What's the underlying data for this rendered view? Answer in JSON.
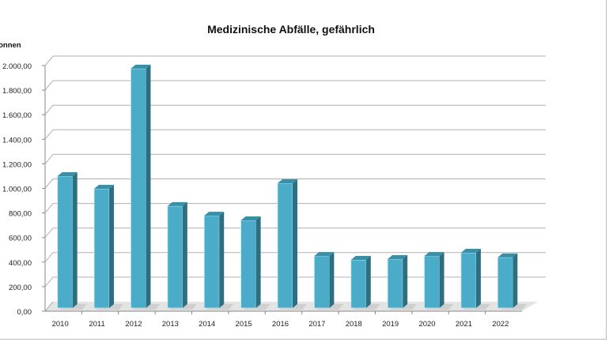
{
  "chart_data": {
    "type": "bar",
    "title": "Medizinische Abfälle, gefährlich",
    "ylabel": "Tonnen",
    "xlabel": "",
    "categories": [
      "2010",
      "2011",
      "2012",
      "2013",
      "2014",
      "2015",
      "2016",
      "2017",
      "2018",
      "2019",
      "2020",
      "2021",
      "2022"
    ],
    "values": [
      1074,
      971,
      1949,
      830,
      752,
      714,
      1016,
      424,
      392,
      399,
      424,
      450,
      412
    ],
    "ylim": [
      0,
      2000
    ],
    "yticks": [
      "0,00",
      "200,00",
      "400,00",
      "600,00",
      "800,00",
      "1.000,00",
      "1.200,00",
      "1.400,00",
      "1.600,00",
      "1.800,00",
      "2.000,00"
    ],
    "grid": true,
    "legend": "none",
    "style": "3d-column",
    "colors": {
      "bar_front": "#4aacc8",
      "bar_side": "#2d6e80",
      "bar_top": "#3a8ea6",
      "grid": "#b0b0b0"
    }
  }
}
